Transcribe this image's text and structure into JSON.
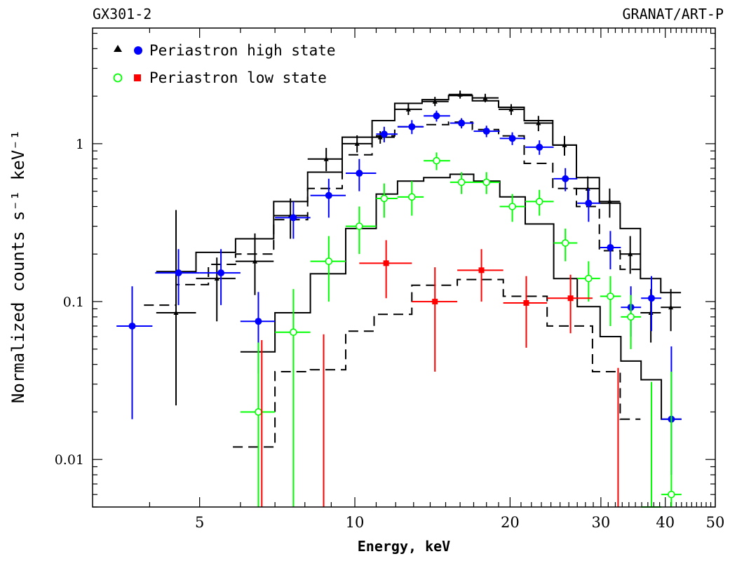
{
  "header": {
    "source_label": "GX301-2",
    "instrument_label": "GRANAT/ART-P"
  },
  "colors": {
    "high_model": "#000000",
    "high_black": "#000000",
    "high_blue": "#0000ff",
    "low_green": "#00ff00",
    "low_red": "#ff0000",
    "axis": "#000000"
  },
  "chart_data": {
    "type": "scatter",
    "xlabel": "Energy, keV",
    "ylabel": "Normalized counts s⁻¹ keV⁻¹",
    "xscale": "log",
    "yscale": "log",
    "xlim": [
      3.1,
      50
    ],
    "ylim": [
      0.005,
      5.4
    ],
    "x_ticks": [
      {
        "value": 5,
        "label": "5"
      },
      {
        "value": 10,
        "label": "10"
      },
      {
        "value": 20,
        "label": "20"
      },
      {
        "value": 30,
        "label": "30"
      },
      {
        "value": 40,
        "label": "40"
      },
      {
        "value": 50,
        "label": "50"
      }
    ],
    "y_ticks": [
      {
        "value": 0.01,
        "label": "0.01"
      },
      {
        "value": 0.1,
        "label": "0.1"
      },
      {
        "value": 1,
        "label": "1"
      }
    ],
    "legend": {
      "placement": "top-left",
      "entries": [
        {
          "label": "Periastron high state",
          "markers": [
            "black-triangle",
            "blue-filled-circle"
          ]
        },
        {
          "label": "Periastron low state",
          "markers": [
            "green-open-circle",
            "red-filled-square"
          ]
        }
      ]
    },
    "series": [
      {
        "name": "Periastron high state",
        "marker": "black-triangle",
        "color": "#000000",
        "points": [
          {
            "x": 4.5,
            "y": 0.085,
            "xerr": [
              4.12,
              4.92
            ],
            "yerr": [
              0.022,
              0.38
            ]
          },
          {
            "x": 5.4,
            "y": 0.14,
            "xerr": [
              4.92,
              5.87
            ],
            "yerr": [
              0.075,
              0.19
            ]
          },
          {
            "x": 6.4,
            "y": 0.18,
            "xerr": [
              5.87,
              6.96
            ],
            "yerr": [
              0.11,
              0.27
            ]
          },
          {
            "x": 7.5,
            "y": 0.35,
            "xerr": [
              6.96,
              8.1
            ],
            "yerr": [
              0.25,
              0.45
            ]
          },
          {
            "x": 8.8,
            "y": 0.8,
            "xerr": [
              8.1,
              9.45
            ],
            "yerr": [
              0.67,
              0.94
            ]
          },
          {
            "x": 10.1,
            "y": 1.0,
            "xerr": [
              9.45,
              10.8
            ],
            "yerr": [
              0.88,
              1.13
            ]
          },
          {
            "x": 11.2,
            "y": 1.1,
            "xerr": [
              10.8,
              11.95
            ],
            "yerr": [
              1.0,
              1.2
            ]
          },
          {
            "x": 12.7,
            "y": 1.65,
            "xerr": [
              11.95,
              13.5
            ],
            "yerr": [
              1.52,
              1.79
            ]
          },
          {
            "x": 14.3,
            "y": 1.85,
            "xerr": [
              13.5,
              15.2
            ],
            "yerr": [
              1.73,
              1.98
            ]
          },
          {
            "x": 16.0,
            "y": 2.05,
            "xerr": [
              15.2,
              16.9
            ],
            "yerr": [
              1.93,
              2.17
            ]
          },
          {
            "x": 17.9,
            "y": 1.95,
            "xerr": [
              16.9,
              19.0
            ],
            "yerr": [
              1.83,
              2.07
            ]
          },
          {
            "x": 20.1,
            "y": 1.65,
            "xerr": [
              19.0,
              21.3
            ],
            "yerr": [
              1.52,
              1.78
            ]
          },
          {
            "x": 22.7,
            "y": 1.35,
            "xerr": [
              21.3,
              24.2
            ],
            "yerr": [
              1.2,
              1.5
            ]
          },
          {
            "x": 25.5,
            "y": 0.98,
            "xerr": [
              24.2,
              26.9
            ],
            "yerr": [
              0.84,
              1.12
            ]
          },
          {
            "x": 28.3,
            "y": 0.52,
            "xerr": [
              26.9,
              29.8
            ],
            "yerr": [
              0.42,
              0.62
            ]
          },
          {
            "x": 31.2,
            "y": 0.43,
            "xerr": [
              29.8,
              32.7
            ],
            "yerr": [
              0.34,
              0.52
            ]
          },
          {
            "x": 34.2,
            "y": 0.2,
            "xerr": [
              32.7,
              35.8
            ],
            "yerr": [
              0.15,
              0.26
            ]
          },
          {
            "x": 37.5,
            "y": 0.085,
            "xerr": [
              35.8,
              39.2
            ],
            "yerr": [
              0.055,
              0.12
            ]
          },
          {
            "x": 41.0,
            "y": 0.092,
            "xerr": [
              39.2,
              42.9
            ],
            "yerr": [
              0.065,
              0.12
            ]
          }
        ]
      },
      {
        "name": "Periastron high state",
        "marker": "blue-filled-circle",
        "color": "#0000ff",
        "points": [
          {
            "x": 3.7,
            "y": 0.07,
            "xerr": [
              3.45,
              4.05
            ],
            "yerr": [
              0.018,
              0.125
            ]
          },
          {
            "x": 4.55,
            "y": 0.152,
            "xerr": [
              4.1,
              5.0
            ],
            "yerr": [
              0.095,
              0.215
            ]
          },
          {
            "x": 5.5,
            "y": 0.152,
            "xerr": [
              5.0,
              6.0
            ],
            "yerr": [
              0.095,
              0.215
            ]
          },
          {
            "x": 6.5,
            "y": 0.075,
            "xerr": [
              6.0,
              7.0
            ],
            "yerr": [
              0.035,
              0.115
            ]
          },
          {
            "x": 7.6,
            "y": 0.34,
            "xerr": [
              7.0,
              8.2
            ],
            "yerr": [
              0.25,
              0.43
            ]
          },
          {
            "x": 8.9,
            "y": 0.47,
            "xerr": [
              8.2,
              9.6
            ],
            "yerr": [
              0.34,
              0.6
            ]
          },
          {
            "x": 10.2,
            "y": 0.65,
            "xerr": [
              9.6,
              11.0
            ],
            "yerr": [
              0.5,
              0.8
            ]
          },
          {
            "x": 11.4,
            "y": 1.15,
            "xerr": [
              11.0,
              12.1
            ],
            "yerr": [
              1.02,
              1.28
            ]
          },
          {
            "x": 12.9,
            "y": 1.28,
            "xerr": [
              12.1,
              13.6
            ],
            "yerr": [
              1.15,
              1.41
            ]
          },
          {
            "x": 14.4,
            "y": 1.5,
            "xerr": [
              13.6,
              15.3
            ],
            "yerr": [
              1.38,
              1.62
            ]
          },
          {
            "x": 16.1,
            "y": 1.35,
            "xerr": [
              15.3,
              17.0
            ],
            "yerr": [
              1.25,
              1.45
            ]
          },
          {
            "x": 18.0,
            "y": 1.2,
            "xerr": [
              17.0,
              19.1
            ],
            "yerr": [
              1.1,
              1.3
            ]
          },
          {
            "x": 20.2,
            "y": 1.08,
            "xerr": [
              19.1,
              21.4
            ],
            "yerr": [
              0.98,
              1.18
            ]
          },
          {
            "x": 22.8,
            "y": 0.95,
            "xerr": [
              21.4,
              24.3
            ],
            "yerr": [
              0.85,
              1.05
            ]
          },
          {
            "x": 25.6,
            "y": 0.6,
            "xerr": [
              24.3,
              27.0
            ],
            "yerr": [
              0.5,
              0.7
            ]
          },
          {
            "x": 28.4,
            "y": 0.42,
            "xerr": [
              27.0,
              29.9
            ],
            "yerr": [
              0.32,
              0.52
            ]
          },
          {
            "x": 31.3,
            "y": 0.22,
            "xerr": [
              29.9,
              32.8
            ],
            "yerr": [
              0.16,
              0.28
            ]
          },
          {
            "x": 34.3,
            "y": 0.092,
            "xerr": [
              32.8,
              35.9
            ],
            "yerr": [
              0.06,
              0.125
            ]
          },
          {
            "x": 37.6,
            "y": 0.105,
            "xerr": [
              35.9,
              39.3
            ],
            "yerr": [
              0.065,
              0.145
            ]
          },
          {
            "x": 41.1,
            "y": 0.018,
            "xerr": [
              39.3,
              43.0
            ],
            "yerr": [
              0.008,
              0.052
            ]
          }
        ]
      },
      {
        "name": "Periastron low state",
        "marker": "green-open-circle",
        "color": "#00ff00",
        "points": [
          {
            "x": 6.5,
            "y": 0.02,
            "xerr": [
              6.0,
              7.0
            ],
            "yerr": [
              0.005,
              0.055
            ]
          },
          {
            "x": 7.6,
            "y": 0.064,
            "xerr": [
              7.0,
              8.2
            ],
            "yerr": [
              0.005,
              0.12
            ]
          },
          {
            "x": 8.9,
            "y": 0.18,
            "xerr": [
              8.2,
              9.6
            ],
            "yerr": [
              0.1,
              0.26
            ]
          },
          {
            "x": 10.2,
            "y": 0.3,
            "xerr": [
              9.6,
              11.0
            ],
            "yerr": [
              0.2,
              0.4
            ]
          },
          {
            "x": 11.4,
            "y": 0.45,
            "xerr": [
              11.0,
              12.1
            ],
            "yerr": [
              0.34,
              0.56
            ]
          },
          {
            "x": 12.9,
            "y": 0.46,
            "xerr": [
              12.1,
              13.6
            ],
            "yerr": [
              0.35,
              0.58
            ]
          },
          {
            "x": 14.4,
            "y": 0.78,
            "xerr": [
              13.6,
              15.3
            ],
            "yerr": [
              0.68,
              0.88
            ]
          },
          {
            "x": 16.1,
            "y": 0.57,
            "xerr": [
              15.3,
              17.0
            ],
            "yerr": [
              0.48,
              0.66
            ]
          },
          {
            "x": 18.0,
            "y": 0.57,
            "xerr": [
              17.0,
              19.1
            ],
            "yerr": [
              0.48,
              0.66
            ]
          },
          {
            "x": 20.2,
            "y": 0.4,
            "xerr": [
              19.1,
              21.4
            ],
            "yerr": [
              0.32,
              0.48
            ]
          },
          {
            "x": 22.8,
            "y": 0.43,
            "xerr": [
              21.4,
              24.3
            ],
            "yerr": [
              0.35,
              0.51
            ]
          },
          {
            "x": 25.6,
            "y": 0.235,
            "xerr": [
              24.3,
              27.0
            ],
            "yerr": [
              0.18,
              0.29
            ]
          },
          {
            "x": 28.4,
            "y": 0.14,
            "xerr": [
              27.0,
              29.9
            ],
            "yerr": [
              0.1,
              0.18
            ]
          },
          {
            "x": 31.3,
            "y": 0.108,
            "xerr": [
              29.9,
              32.8
            ],
            "yerr": [
              0.07,
              0.145
            ]
          },
          {
            "x": 34.3,
            "y": 0.08,
            "xerr": [
              32.8,
              35.9
            ],
            "yerr": [
              0.05,
              0.11
            ]
          },
          {
            "x": 37.6,
            "y": 0.005,
            "xerr": [
              35.9,
              39.3
            ],
            "yerr": [
              0.005,
              0.031
            ]
          },
          {
            "x": 41.1,
            "y": 0.006,
            "xerr": [
              39.3,
              43.0
            ],
            "yerr": [
              0.005,
              0.036
            ]
          }
        ]
      },
      {
        "name": "Periastron low state",
        "marker": "red-filled-square",
        "color": "#ff0000",
        "points": [
          {
            "x": 6.6,
            "y": 0.005,
            "xerr": [
              6.6,
              6.6
            ],
            "yerr": [
              0.005,
              0.057
            ]
          },
          {
            "x": 8.7,
            "y": 0.005,
            "xerr": [
              8.7,
              8.7
            ],
            "yerr": [
              0.005,
              0.062
            ]
          },
          {
            "x": 11.5,
            "y": 0.175,
            "xerr": [
              10.2,
              12.9
            ],
            "yerr": [
              0.105,
              0.245
            ]
          },
          {
            "x": 14.3,
            "y": 0.1,
            "xerr": [
              12.9,
              15.8
            ],
            "yerr": [
              0.036,
              0.165
            ]
          },
          {
            "x": 17.6,
            "y": 0.158,
            "xerr": [
              15.8,
              19.4
            ],
            "yerr": [
              0.1,
              0.215
            ]
          },
          {
            "x": 21.5,
            "y": 0.098,
            "xerr": [
              19.4,
              23.6
            ],
            "yerr": [
              0.051,
              0.145
            ]
          },
          {
            "x": 26.2,
            "y": 0.105,
            "xerr": [
              23.6,
              28.9
            ],
            "yerr": [
              0.063,
              0.148
            ]
          },
          {
            "x": 32.4,
            "y": 0.005,
            "xerr": [
              32.4,
              32.4
            ],
            "yerr": [
              0.005,
              0.038
            ]
          }
        ]
      }
    ],
    "models": [
      {
        "name": "high-solid",
        "style": "solid",
        "edges": [
          4.12,
          4.92,
          5.87,
          6.96,
          8.1,
          9.45,
          10.8,
          11.95,
          13.5,
          15.2,
          16.9,
          19.0,
          21.3,
          24.2,
          26.9,
          29.8,
          32.7,
          35.8,
          39.2,
          42.9
        ],
        "values": [
          0.155,
          0.205,
          0.25,
          0.43,
          0.66,
          1.1,
          1.4,
          1.8,
          1.9,
          2.02,
          1.87,
          1.7,
          1.4,
          0.98,
          0.61,
          0.42,
          0.29,
          0.14,
          0.114
        ]
      },
      {
        "name": "high-dashed",
        "style": "dashed",
        "edges": [
          3.9,
          4.5,
          5.2,
          5.87,
          6.96,
          8.1,
          9.45,
          10.8,
          11.95,
          13.5,
          15.2,
          16.9,
          19.0,
          21.3,
          24.2,
          26.9,
          29.8,
          32.7,
          35.8
        ],
        "values": [
          0.095,
          0.128,
          0.172,
          0.2,
          0.33,
          0.52,
          0.85,
          1.12,
          1.28,
          1.32,
          1.37,
          1.23,
          1.12,
          0.75,
          0.52,
          0.4,
          0.21,
          0.16
        ]
      },
      {
        "name": "low-solid",
        "style": "solid",
        "edges": [
          6.0,
          7.0,
          8.2,
          9.6,
          11.0,
          12.1,
          13.6,
          15.3,
          17.0,
          19.1,
          21.4,
          24.3,
          27.0,
          29.9,
          32.8,
          35.9,
          39.3,
          43.0
        ],
        "values": [
          0.048,
          0.085,
          0.15,
          0.29,
          0.48,
          0.58,
          0.61,
          0.64,
          0.58,
          0.46,
          0.31,
          0.14,
          0.093,
          0.06,
          0.042,
          0.032,
          0.018
        ]
      },
      {
        "name": "low-dashed",
        "style": "dashed",
        "edges": [
          5.8,
          7.0,
          8.2,
          9.6,
          10.9,
          12.9,
          15.8,
          19.4,
          23.6,
          28.9,
          32.7,
          35.8
        ],
        "values": [
          0.012,
          0.036,
          0.037,
          0.065,
          0.083,
          0.127,
          0.138,
          0.108,
          0.07,
          0.036,
          0.018
        ]
      }
    ]
  }
}
